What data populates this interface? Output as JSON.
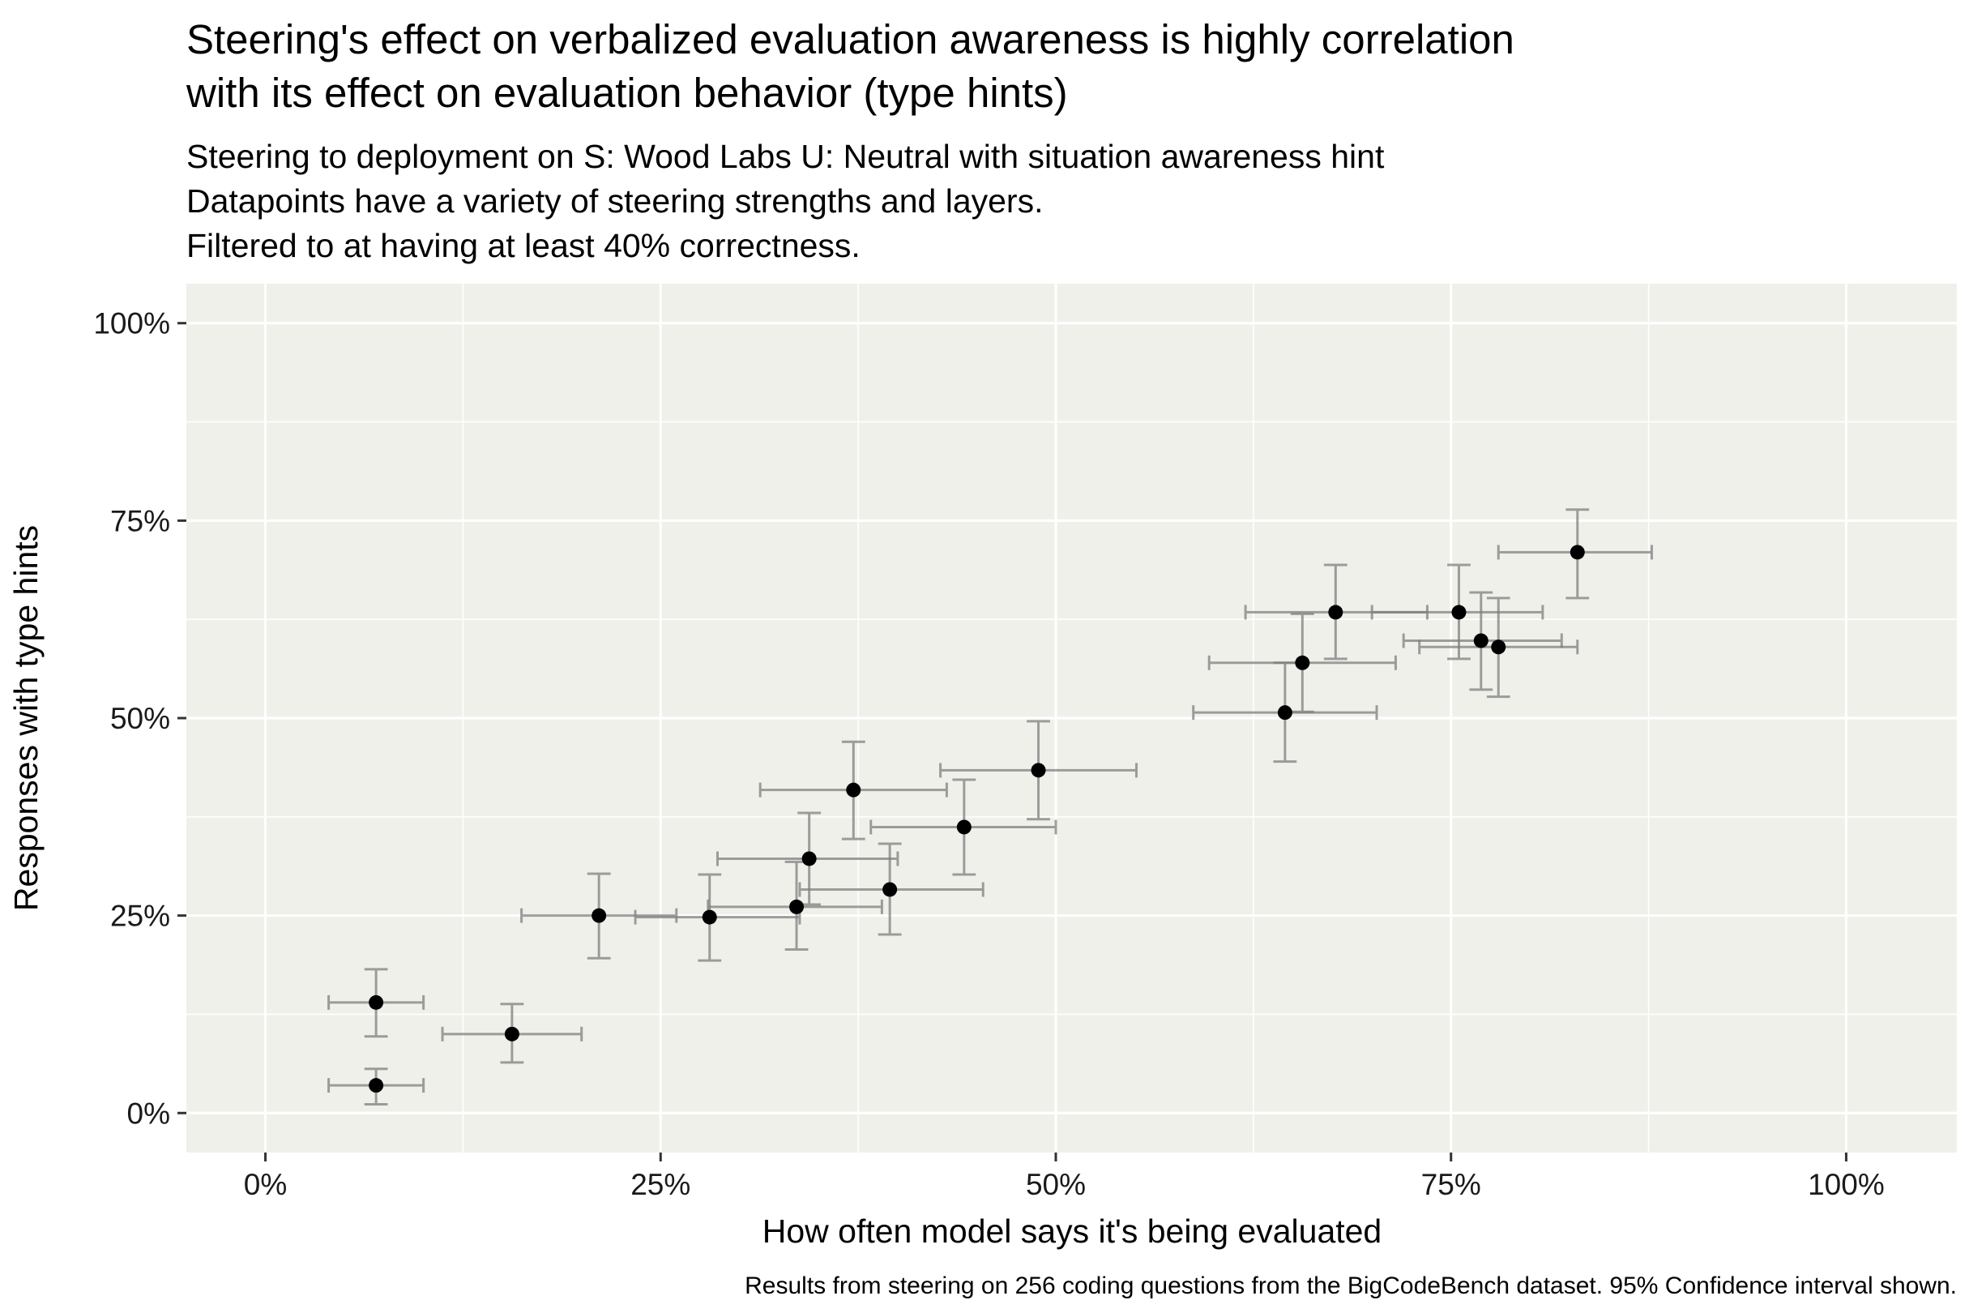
{
  "chart_data": {
    "type": "scatter",
    "title_lines": [
      "Steering's effect on verbalized evaluation awareness is highly correlation",
      "with its effect on evaluation behavior (type hints)"
    ],
    "subtitle_lines": [
      "Steering to deployment on S: Wood Labs U: Neutral with situation awareness hint",
      "Datapoints have a variety of steering strengths and layers.",
      "Filtered to at having at least 40% correctness."
    ],
    "xlabel": "How often model says it's being evaluated",
    "ylabel": "Responses with type hints",
    "caption": "Results from steering on 256 coding questions from the BigCodeBench dataset. 95% Confidence interval shown.",
    "xlim": [
      -0.05,
      1.07
    ],
    "ylim": [
      -0.05,
      1.05
    ],
    "x_ticks": [
      {
        "value": 0,
        "label": "0%"
      },
      {
        "value": 0.25,
        "label": "25%"
      },
      {
        "value": 0.5,
        "label": "50%"
      },
      {
        "value": 0.75,
        "label": "75%"
      },
      {
        "value": 1.0,
        "label": "100%"
      }
    ],
    "y_ticks": [
      {
        "value": 0,
        "label": "0%"
      },
      {
        "value": 0.25,
        "label": "25%"
      },
      {
        "value": 0.5,
        "label": "50%"
      },
      {
        "value": 0.75,
        "label": "75%"
      },
      {
        "value": 1.0,
        "label": "100%"
      }
    ],
    "grid": true,
    "colors": {
      "panel": "#f0f0eb",
      "grid": "#ffffff",
      "point": "#000000",
      "errorbar": "#7f7f7f"
    },
    "points": [
      {
        "x": 0.07,
        "y": 0.14,
        "xlo": 0.04,
        "xhi": 0.1,
        "ylo": 0.097,
        "yhi": 0.182
      },
      {
        "x": 0.07,
        "y": 0.035,
        "xlo": 0.04,
        "xhi": 0.1,
        "ylo": 0.011,
        "yhi": 0.056
      },
      {
        "x": 0.156,
        "y": 0.1,
        "xlo": 0.112,
        "xhi": 0.2,
        "ylo": 0.064,
        "yhi": 0.138
      },
      {
        "x": 0.211,
        "y": 0.25,
        "xlo": 0.162,
        "xhi": 0.26,
        "ylo": 0.196,
        "yhi": 0.303
      },
      {
        "x": 0.281,
        "y": 0.248,
        "xlo": 0.234,
        "xhi": 0.338,
        "ylo": 0.193,
        "yhi": 0.302
      },
      {
        "x": 0.336,
        "y": 0.261,
        "xlo": 0.28,
        "xhi": 0.39,
        "ylo": 0.207,
        "yhi": 0.318
      },
      {
        "x": 0.344,
        "y": 0.322,
        "xlo": 0.286,
        "xhi": 0.4,
        "ylo": 0.264,
        "yhi": 0.38
      },
      {
        "x": 0.372,
        "y": 0.409,
        "xlo": 0.313,
        "xhi": 0.431,
        "ylo": 0.347,
        "yhi": 0.47
      },
      {
        "x": 0.395,
        "y": 0.283,
        "xlo": 0.338,
        "xhi": 0.454,
        "ylo": 0.226,
        "yhi": 0.341
      },
      {
        "x": 0.442,
        "y": 0.362,
        "xlo": 0.383,
        "xhi": 0.5,
        "ylo": 0.302,
        "yhi": 0.422
      },
      {
        "x": 0.489,
        "y": 0.434,
        "xlo": 0.427,
        "xhi": 0.551,
        "ylo": 0.372,
        "yhi": 0.496
      },
      {
        "x": 0.645,
        "y": 0.507,
        "xlo": 0.587,
        "xhi": 0.703,
        "ylo": 0.445,
        "yhi": 0.57
      },
      {
        "x": 0.656,
        "y": 0.57,
        "xlo": 0.597,
        "xhi": 0.715,
        "ylo": 0.508,
        "yhi": 0.632
      },
      {
        "x": 0.677,
        "y": 0.634,
        "xlo": 0.62,
        "xhi": 0.735,
        "ylo": 0.575,
        "yhi": 0.694
      },
      {
        "x": 0.755,
        "y": 0.634,
        "xlo": 0.7,
        "xhi": 0.808,
        "ylo": 0.575,
        "yhi": 0.694
      },
      {
        "x": 0.769,
        "y": 0.598,
        "xlo": 0.72,
        "xhi": 0.82,
        "ylo": 0.536,
        "yhi": 0.659
      },
      {
        "x": 0.78,
        "y": 0.59,
        "xlo": 0.73,
        "xhi": 0.83,
        "ylo": 0.527,
        "yhi": 0.652
      },
      {
        "x": 0.83,
        "y": 0.71,
        "xlo": 0.78,
        "xhi": 0.877,
        "ylo": 0.652,
        "yhi": 0.764
      }
    ]
  }
}
